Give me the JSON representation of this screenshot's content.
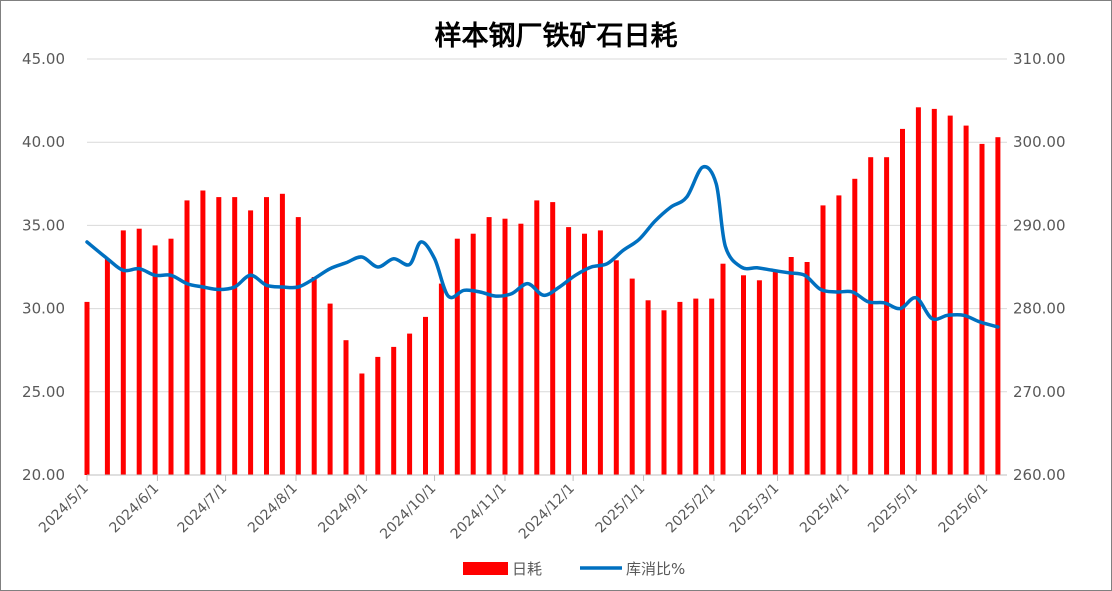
{
  "chart_data": {
    "type": "bar+line",
    "title": "样本钢厂铁矿石日耗",
    "y_left": {
      "min": 20,
      "max": 45,
      "ticks": [
        "20.00",
        "25.00",
        "30.00",
        "35.00",
        "40.00",
        "45.00"
      ]
    },
    "y_right": {
      "min": 260,
      "max": 310,
      "ticks": [
        "260.00",
        "270.00",
        "280.00",
        "290.00",
        "300.00",
        "310.00"
      ]
    },
    "x_range": [
      "2024-05-01",
      "2025-06-10"
    ],
    "x_ticks": [
      {
        "date": "2024-05-01",
        "label": "2024/5/1"
      },
      {
        "date": "2024-06-01",
        "label": "2024/6/1"
      },
      {
        "date": "2024-07-01",
        "label": "2024/7/1"
      },
      {
        "date": "2024-08-01",
        "label": "2024/8/1"
      },
      {
        "date": "2024-09-01",
        "label": "2024/9/1"
      },
      {
        "date": "2024-10-01",
        "label": "2024/10/1"
      },
      {
        "date": "2024-11-01",
        "label": "2024/11/1"
      },
      {
        "date": "2024-12-01",
        "label": "2024/12/1"
      },
      {
        "date": "2025-01-01",
        "label": "2025/1/1"
      },
      {
        "date": "2025-02-01",
        "label": "2025/2/1"
      },
      {
        "date": "2025-03-01",
        "label": "2025/3/1"
      },
      {
        "date": "2025-04-01",
        "label": "2025/4/1"
      },
      {
        "date": "2025-05-01",
        "label": "2025/5/1"
      },
      {
        "date": "2025-06-01",
        "label": "2025/6/1"
      }
    ],
    "series": [
      {
        "name": "日耗",
        "type": "bar",
        "axis": "left",
        "color": "#ff0000",
        "points": [
          [
            "2024-05-01",
            30.4
          ],
          [
            "2024-05-10",
            33.0
          ],
          [
            "2024-05-17",
            34.7
          ],
          [
            "2024-05-24",
            34.8
          ],
          [
            "2024-05-31",
            33.8
          ],
          [
            "2024-06-07",
            34.2
          ],
          [
            "2024-06-14",
            36.5
          ],
          [
            "2024-06-21",
            37.1
          ],
          [
            "2024-06-28",
            36.7
          ],
          [
            "2024-07-05",
            36.7
          ],
          [
            "2024-07-12",
            35.9
          ],
          [
            "2024-07-19",
            36.7
          ],
          [
            "2024-07-26",
            36.9
          ],
          [
            "2024-08-02",
            35.5
          ],
          [
            "2024-08-09",
            31.9
          ],
          [
            "2024-08-16",
            30.3
          ],
          [
            "2024-08-23",
            28.1
          ],
          [
            "2024-08-30",
            26.1
          ],
          [
            "2024-09-06",
            27.1
          ],
          [
            "2024-09-13",
            27.7
          ],
          [
            "2024-09-20",
            28.5
          ],
          [
            "2024-09-27",
            29.5
          ],
          [
            "2024-10-04",
            31.5
          ],
          [
            "2024-10-11",
            34.2
          ],
          [
            "2024-10-18",
            34.5
          ],
          [
            "2024-10-25",
            35.5
          ],
          [
            "2024-11-01",
            35.4
          ],
          [
            "2024-11-08",
            35.1
          ],
          [
            "2024-11-15",
            36.5
          ],
          [
            "2024-11-22",
            36.4
          ],
          [
            "2024-11-29",
            34.9
          ],
          [
            "2024-12-06",
            34.5
          ],
          [
            "2024-12-13",
            34.7
          ],
          [
            "2024-12-20",
            32.9
          ],
          [
            "2024-12-27",
            31.8
          ],
          [
            "2025-01-03",
            30.5
          ],
          [
            "2025-01-10",
            29.9
          ],
          [
            "2025-01-17",
            30.4
          ],
          [
            "2025-01-24",
            30.6
          ],
          [
            "2025-01-31",
            30.6
          ],
          [
            "2025-02-05",
            32.7
          ],
          [
            "2025-02-14",
            32.0
          ],
          [
            "2025-02-21",
            31.7
          ],
          [
            "2025-02-28",
            32.2
          ],
          [
            "2025-03-07",
            33.1
          ],
          [
            "2025-03-14",
            32.8
          ],
          [
            "2025-03-21",
            36.2
          ],
          [
            "2025-03-28",
            36.8
          ],
          [
            "2025-04-04",
            37.8
          ],
          [
            "2025-04-11",
            39.1
          ],
          [
            "2025-04-18",
            39.1
          ],
          [
            "2025-04-25",
            40.8
          ],
          [
            "2025-05-02",
            42.1
          ],
          [
            "2025-05-09",
            42.0
          ],
          [
            "2025-05-16",
            41.6
          ],
          [
            "2025-05-23",
            41.0
          ],
          [
            "2025-05-30",
            39.9
          ],
          [
            "2025-06-06",
            40.3
          ]
        ]
      },
      {
        "name": "库消比%",
        "type": "line",
        "axis": "right",
        "color": "#0070c0",
        "points": [
          [
            "2024-05-01",
            288.0
          ],
          [
            "2024-05-10",
            286.0
          ],
          [
            "2024-05-17",
            284.6
          ],
          [
            "2024-05-24",
            284.8
          ],
          [
            "2024-05-31",
            284.0
          ],
          [
            "2024-06-07",
            284.0
          ],
          [
            "2024-06-14",
            283.0
          ],
          [
            "2024-06-21",
            282.6
          ],
          [
            "2024-06-28",
            282.3
          ],
          [
            "2024-07-05",
            282.6
          ],
          [
            "2024-07-12",
            284.0
          ],
          [
            "2024-07-19",
            282.8
          ],
          [
            "2024-07-26",
            282.6
          ],
          [
            "2024-08-02",
            282.6
          ],
          [
            "2024-08-09",
            283.6
          ],
          [
            "2024-08-16",
            284.8
          ],
          [
            "2024-08-23",
            285.5
          ],
          [
            "2024-08-30",
            286.2
          ],
          [
            "2024-09-06",
            285.0
          ],
          [
            "2024-09-13",
            286.0
          ],
          [
            "2024-09-20",
            285.3
          ],
          [
            "2024-09-25",
            288.0
          ],
          [
            "2024-10-01",
            286.0
          ],
          [
            "2024-10-07",
            281.5
          ],
          [
            "2024-10-14",
            282.2
          ],
          [
            "2024-10-21",
            282.0
          ],
          [
            "2024-10-28",
            281.5
          ],
          [
            "2024-11-04",
            281.8
          ],
          [
            "2024-11-11",
            283.0
          ],
          [
            "2024-11-18",
            281.6
          ],
          [
            "2024-11-25",
            282.6
          ],
          [
            "2024-12-02",
            284.0
          ],
          [
            "2024-12-09",
            285.0
          ],
          [
            "2024-12-16",
            285.4
          ],
          [
            "2024-12-23",
            287.0
          ],
          [
            "2024-12-30",
            288.3
          ],
          [
            "2025-01-06",
            290.5
          ],
          [
            "2025-01-13",
            292.2
          ],
          [
            "2025-01-20",
            293.4
          ],
          [
            "2025-01-27",
            297.0
          ],
          [
            "2025-02-02",
            295.0
          ],
          [
            "2025-02-06",
            287.5
          ],
          [
            "2025-02-13",
            285.0
          ],
          [
            "2025-02-20",
            284.9
          ],
          [
            "2025-02-27",
            284.6
          ],
          [
            "2025-03-06",
            284.3
          ],
          [
            "2025-03-13",
            284.0
          ],
          [
            "2025-03-20",
            282.3
          ],
          [
            "2025-03-27",
            282.0
          ],
          [
            "2025-04-03",
            282.0
          ],
          [
            "2025-04-10",
            280.8
          ],
          [
            "2025-04-17",
            280.7
          ],
          [
            "2025-04-24",
            280.0
          ],
          [
            "2025-05-01",
            281.3
          ],
          [
            "2025-05-08",
            278.8
          ],
          [
            "2025-05-15",
            279.2
          ],
          [
            "2025-05-22",
            279.2
          ],
          [
            "2025-05-29",
            278.4
          ],
          [
            "2025-06-06",
            277.8
          ]
        ]
      }
    ],
    "grid": {
      "horizontal": true,
      "vertical": false
    },
    "legend": {
      "position": "bottom"
    }
  }
}
